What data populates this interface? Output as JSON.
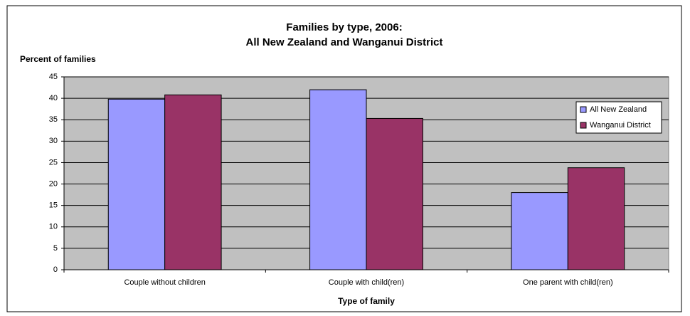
{
  "chart_data": {
    "type": "bar",
    "title": [
      "Families by type, 2006:",
      "All New Zealand and Wanganui District"
    ],
    "y_label": "Percent of families",
    "x_label": "Type of family",
    "categories": [
      "Couple without children",
      "Couple with child(ren)",
      "One parent with child(ren)"
    ],
    "series": [
      {
        "name": "All New Zealand",
        "color": "#9999ff",
        "values": [
          39.8,
          42,
          18
        ]
      },
      {
        "name": "Wanganui District",
        "color": "#993366",
        "values": [
          40.8,
          35.3,
          23.8
        ]
      }
    ],
    "ylim": [
      0,
      45
    ],
    "yticks": [
      0,
      5,
      10,
      15,
      20,
      25,
      30,
      35,
      40,
      45
    ],
    "grid": true,
    "legend": "upper right"
  }
}
